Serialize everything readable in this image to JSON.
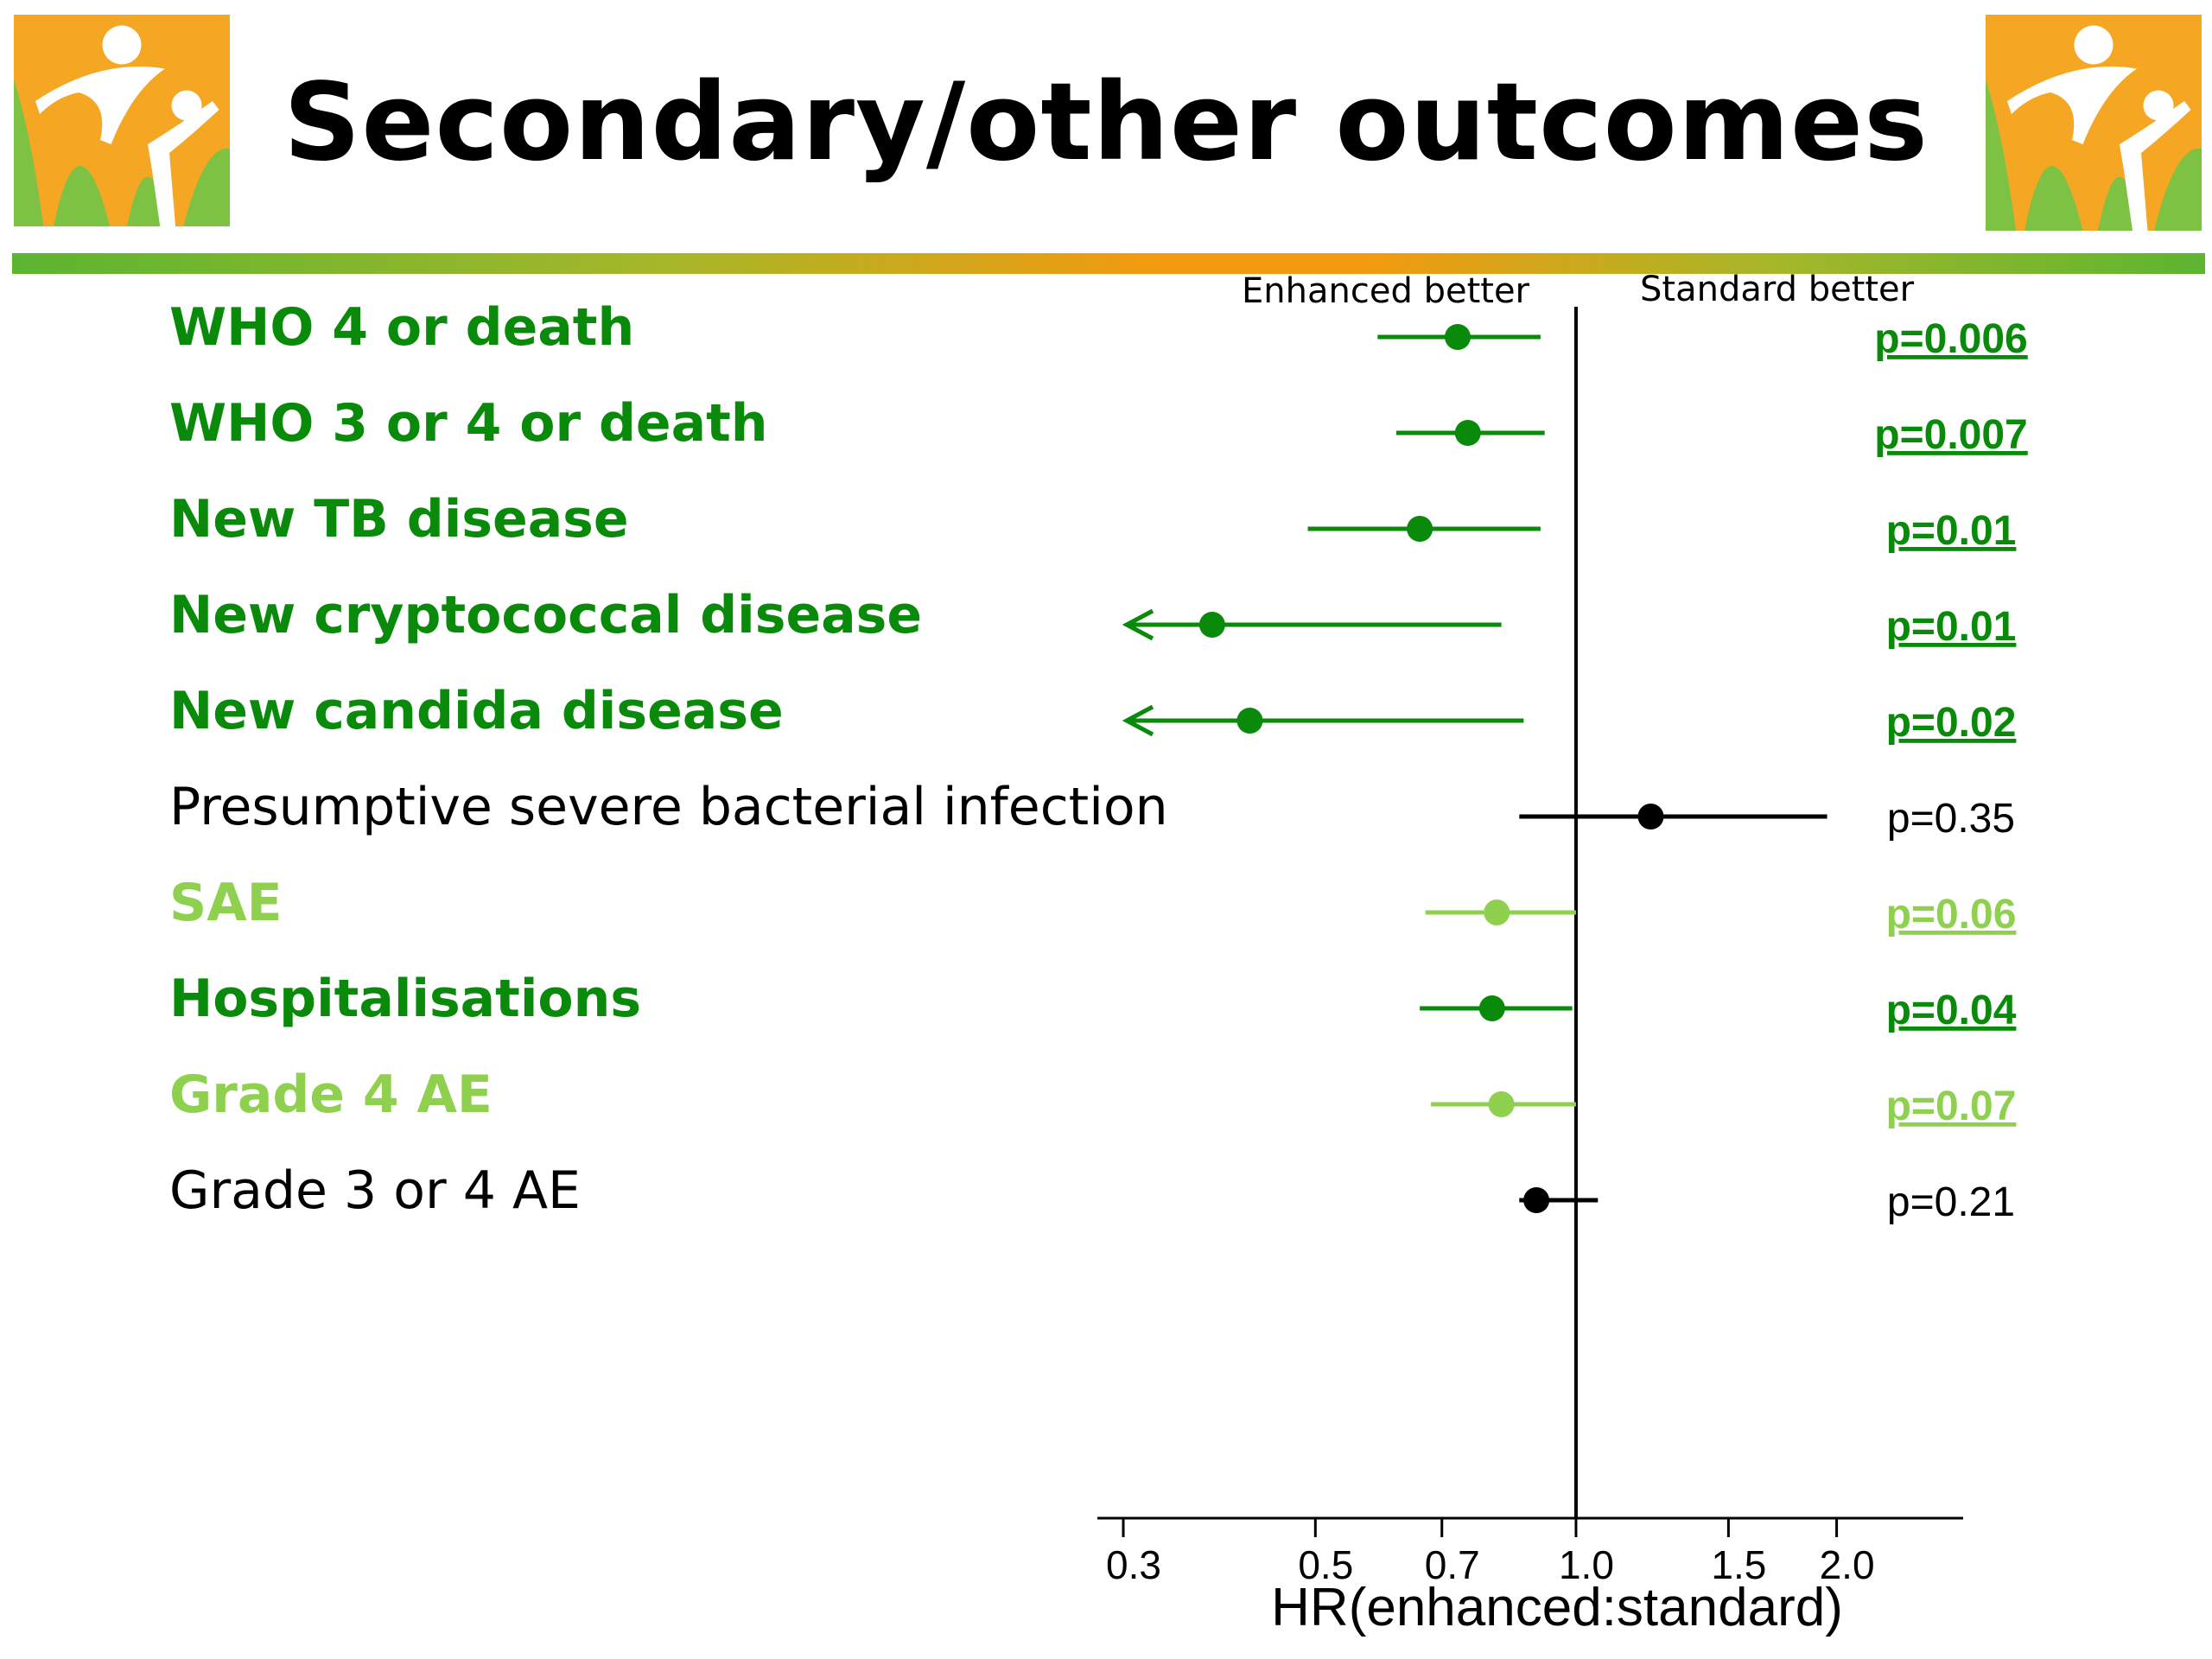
{
  "title": "Secondary/other outcomes",
  "logo": {
    "icon": "family-logo-icon",
    "colors": [
      "#f5a623",
      "#7dc243",
      "#ffffff"
    ]
  },
  "colors": {
    "dark_green": "#0a8a0a",
    "light_green": "#8fd14f",
    "black": "#000000",
    "accent_orange": "#f39a10",
    "accent_green": "#5cb531"
  },
  "chart_data": {
    "type": "forest",
    "xlabel": "HR(enhanced:standard)",
    "x_scale": "log",
    "xlim": [
      0.28,
      2.8
    ],
    "x_ticks": [
      0.3,
      0.5,
      0.7,
      1.0,
      1.5,
      2.0
    ],
    "x_tick_labels": [
      "0.3",
      "0.5",
      "0.7",
      "1.0",
      "1.5",
      "2.0"
    ],
    "reference_line": 1.0,
    "direction_labels": {
      "left": "Enhanced better",
      "right": "Standard better"
    },
    "rows": [
      {
        "label": "WHO 4 or death",
        "hr": 0.73,
        "lower": 0.59,
        "upper": 0.91,
        "p": "p=0.006",
        "color": "dark_green",
        "significant": true,
        "arrow_left": false
      },
      {
        "label": "WHO 3 or 4 or death",
        "hr": 0.75,
        "lower": 0.62,
        "upper": 0.92,
        "p": "p=0.007",
        "color": "dark_green",
        "significant": true,
        "arrow_left": false
      },
      {
        "label": "New TB disease",
        "hr": 0.66,
        "lower": 0.49,
        "upper": 0.91,
        "p": "p=0.01",
        "color": "dark_green",
        "significant": true,
        "arrow_left": false
      },
      {
        "label": "New cryptococcal disease",
        "hr": 0.38,
        "lower": 0.3,
        "upper": 0.82,
        "p": "p=0.01",
        "color": "dark_green",
        "significant": true,
        "arrow_left": true
      },
      {
        "label": "New candida disease",
        "hr": 0.42,
        "lower": 0.3,
        "upper": 0.87,
        "p": "p=0.02",
        "color": "dark_green",
        "significant": true,
        "arrow_left": true
      },
      {
        "label": "Presumptive severe bacterial infection",
        "hr": 1.22,
        "lower": 0.86,
        "upper": 1.95,
        "p": "p=0.35",
        "color": "black",
        "significant": false,
        "arrow_left": false
      },
      {
        "label": "SAE",
        "hr": 0.81,
        "lower": 0.67,
        "upper": 1.0,
        "p": "p=0.06",
        "color": "light_green",
        "significant": true,
        "arrow_left": false
      },
      {
        "label": "Hospitalisations",
        "hr": 0.8,
        "lower": 0.66,
        "upper": 0.99,
        "p": "p=0.04",
        "color": "dark_green",
        "significant": true,
        "arrow_left": false
      },
      {
        "label": "Grade 4 AE",
        "hr": 0.82,
        "lower": 0.68,
        "upper": 1.0,
        "p": "p=0.07",
        "color": "light_green",
        "significant": true,
        "arrow_left": false
      },
      {
        "label": "Grade 3 or 4 AE",
        "hr": 0.9,
        "lower": 0.86,
        "upper": 1.06,
        "p": "p=0.21",
        "color": "black",
        "significant": false,
        "arrow_left": false
      }
    ]
  }
}
